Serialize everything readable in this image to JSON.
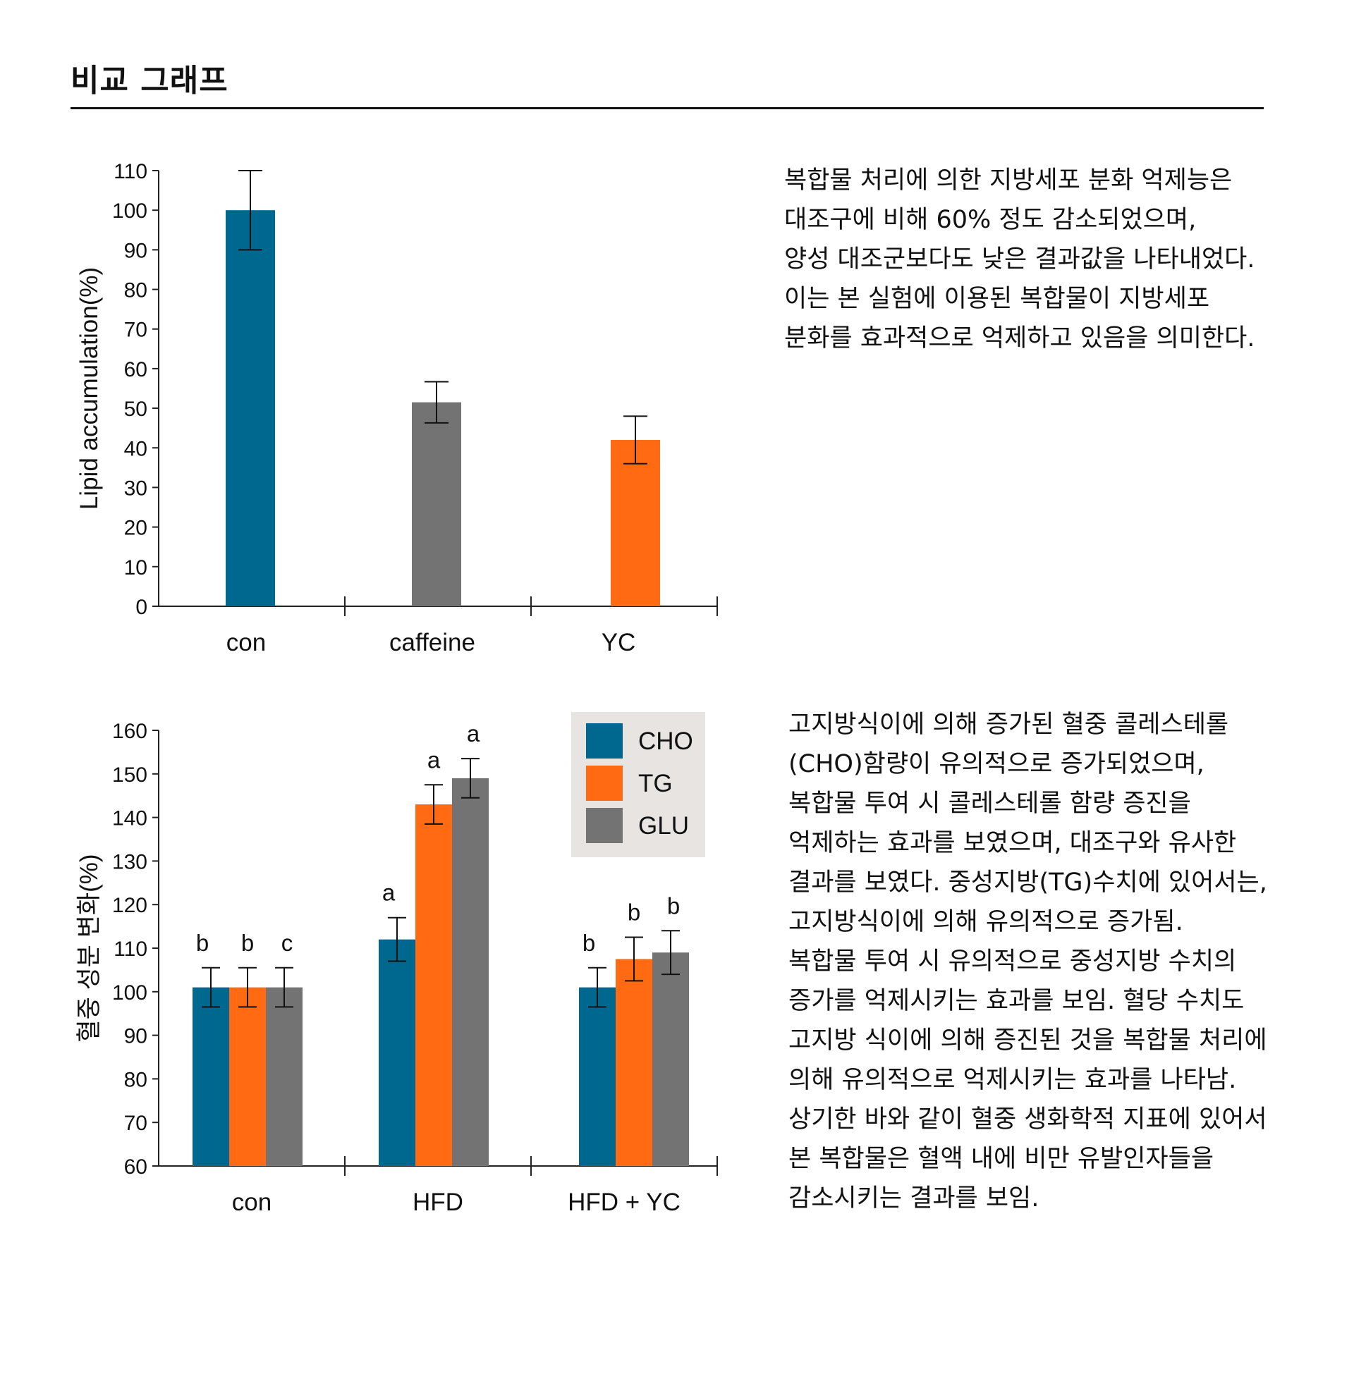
{
  "page": {
    "title": "비교 그래프"
  },
  "descriptions": {
    "lipid": [
      "복합물 처리에 의한 지방세포 분화 억제능은",
      "대조구에 비해 60% 정도 감소되었으며,",
      "양성 대조군보다도 낮은 결과값을 나타내었다.",
      "이는 본 실험에 이용된 복합물이 지방세포",
      "분화를 효과적으로 억제하고 있음을 의미한다."
    ],
    "blood": [
      "고지방식이에 의해 증가된 혈중 콜레스테롤",
      "(CHO)함량이 유의적으로 증가되었으며,",
      "복합물 투여 시 콜레스테롤 함량 증진을",
      "억제하는 효과를 보였으며, 대조구와 유사한",
      "결과를 보였다. 중성지방(TG)수치에 있어서는,",
      "고지방식이에 의해 유의적으로 증가됨.",
      "복합물 투여 시 유의적으로 중성지방 수치의",
      "증가를 억제시키는 효과를 보임. 혈당 수치도",
      "고지방 식이에 의해 증진된 것을 복합물 처리에",
      "의해 유의적으로 억제시키는 효과를 나타남.",
      "상기한 바와 같이 혈중 생화학적 지표에 있어서",
      "본 복합물은 혈액 내에 비만 유발인자들을",
      "감소시키는 결과를 보임."
    ]
  },
  "colors": {
    "blue": "#00688f",
    "orange": "#ff6a13",
    "gray": "#747373",
    "legend_bg": "#e7e4e1"
  },
  "chart_data": [
    {
      "type": "bar",
      "title": "",
      "xlabel": "",
      "ylabel": "Lipid accumulation(%)",
      "categories": [
        "con",
        "caffeine",
        "YC"
      ],
      "values": [
        100,
        51.5,
        42
      ],
      "errors": [
        10,
        5.2,
        6
      ],
      "bar_colors": [
        "#00688f",
        "#747373",
        "#ff6a13"
      ],
      "ylim": [
        0,
        110
      ],
      "yticks": [
        "0",
        "10",
        "20",
        "30",
        "40",
        "50",
        "60",
        "70",
        "80",
        "90",
        "100",
        "110"
      ],
      "grid": false
    },
    {
      "type": "bar",
      "title": "",
      "xlabel": "",
      "ylabel": "혈중 성분 변화(%)",
      "categories": [
        "con",
        "HFD",
        "HFD + YC"
      ],
      "series": [
        {
          "name": "CHO",
          "color": "#00688f",
          "values": [
            101,
            112,
            101
          ],
          "errors": [
            4.5,
            5,
            4.5
          ],
          "labels": [
            "b",
            "a",
            "b"
          ]
        },
        {
          "name": "TG",
          "color": "#ff6a13",
          "values": [
            101,
            143,
            107.5
          ],
          "errors": [
            4.5,
            4.5,
            5
          ],
          "labels": [
            "b",
            "a",
            "b"
          ]
        },
        {
          "name": "GLU",
          "color": "#747373",
          "values": [
            101,
            149,
            109
          ],
          "errors": [
            4.5,
            4.5,
            5
          ],
          "labels": [
            "c",
            "a",
            "b"
          ]
        }
      ],
      "ylim": [
        60,
        160
      ],
      "yticks": [
        "60",
        "70",
        "80",
        "90",
        "100",
        "110",
        "120",
        "130",
        "140",
        "150",
        "160"
      ],
      "legend": "top-right",
      "grid": false
    }
  ]
}
